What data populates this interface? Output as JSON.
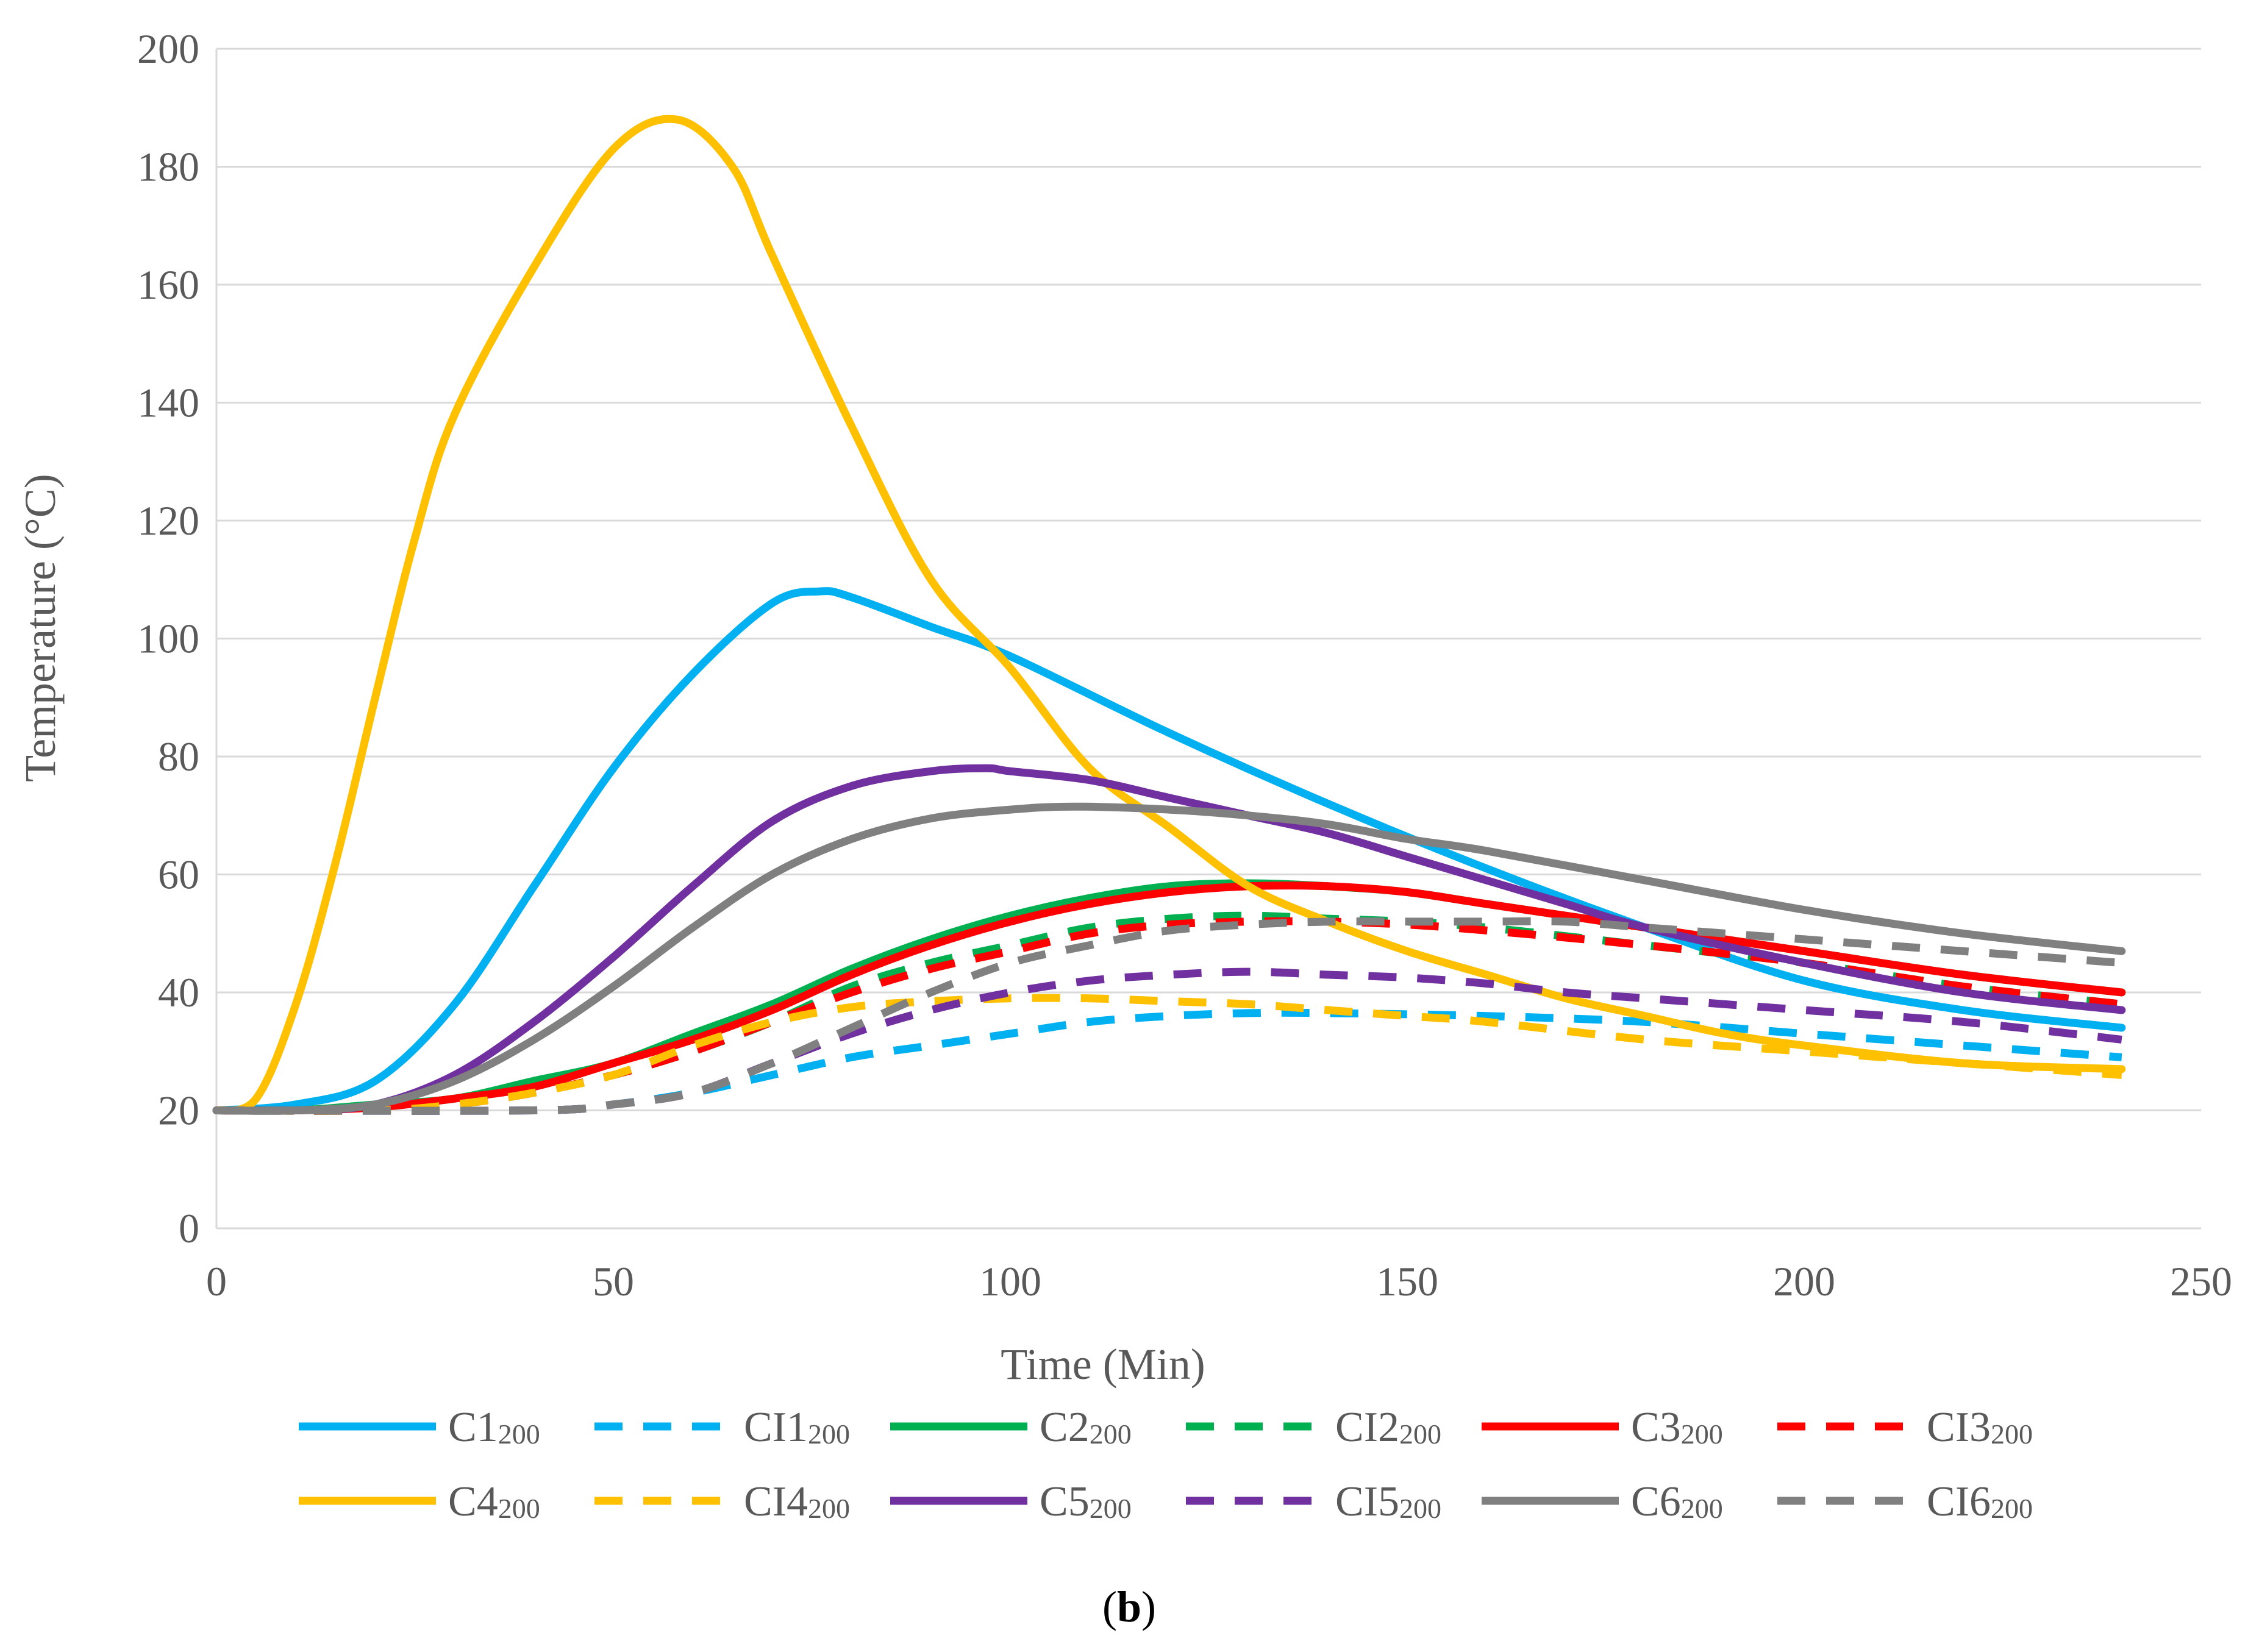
{
  "chart_data": {
    "type": "line",
    "title": "",
    "xlabel": "Time (Min)",
    "ylabel": "Temperature (°C)",
    "xlim": [
      0,
      250
    ],
    "ylim": [
      0,
      200
    ],
    "xticks": [
      0,
      50,
      100,
      150,
      200,
      250
    ],
    "yticks": [
      0,
      20,
      40,
      60,
      80,
      100,
      120,
      140,
      160,
      180,
      200
    ],
    "grid": "horizontal",
    "legend_position": "bottom",
    "series": [
      {
        "name": "C1",
        "subscript": "200",
        "color": "#00B0F0",
        "dash": "solid",
        "x": [
          0,
          10,
          20,
          30,
          40,
          50,
          60,
          70,
          76,
          80,
          90,
          100,
          120,
          140,
          160,
          180,
          200,
          220,
          240
        ],
        "y": [
          20,
          21,
          25,
          38,
          58,
          78,
          94,
          106,
          108,
          107,
          102,
          97,
          84,
          72,
          61,
          51,
          42,
          37,
          34
        ]
      },
      {
        "name": "CI1",
        "subscript": "200",
        "color": "#00B0F0",
        "dash": "dashed",
        "x": [
          0,
          40,
          50,
          60,
          70,
          80,
          90,
          100,
          110,
          120,
          130,
          140,
          160,
          180,
          200,
          220,
          240
        ],
        "y": [
          20,
          20,
          21,
          23,
          26,
          29,
          31,
          33,
          35,
          36,
          36.5,
          36.5,
          36,
          35,
          33,
          31,
          29
        ]
      },
      {
        "name": "C2",
        "subscript": "200",
        "color": "#00B050",
        "dash": "solid",
        "x": [
          0,
          10,
          20,
          30,
          40,
          50,
          60,
          70,
          80,
          90,
          100,
          110,
          120,
          130,
          140,
          150,
          160,
          180,
          200,
          220,
          240
        ],
        "y": [
          20,
          20,
          21,
          22,
          25,
          28,
          33,
          38,
          44,
          49,
          53,
          56,
          58,
          58.5,
          58,
          57,
          55,
          51,
          47,
          43,
          40
        ]
      },
      {
        "name": "CI2",
        "subscript": "200",
        "color": "#00B050",
        "dash": "dashed",
        "x": [
          0,
          20,
          30,
          40,
          50,
          60,
          70,
          80,
          90,
          100,
          110,
          120,
          130,
          140,
          150,
          160,
          180,
          200,
          220,
          240
        ],
        "y": [
          20,
          20,
          21,
          23,
          26,
          30,
          35,
          41,
          45,
          48,
          51,
          52.5,
          53,
          52.5,
          52,
          51,
          48,
          45,
          41,
          38
        ]
      },
      {
        "name": "C3",
        "subscript": "200",
        "color": "#FF0000",
        "dash": "solid",
        "x": [
          0,
          10,
          20,
          30,
          40,
          50,
          60,
          70,
          80,
          90,
          100,
          110,
          120,
          130,
          140,
          150,
          160,
          180,
          200,
          220,
          240
        ],
        "y": [
          20,
          20,
          20.5,
          22,
          24,
          28,
          32,
          37,
          43,
          48,
          52,
          55,
          57,
          58,
          58,
          57,
          55,
          51,
          47,
          43,
          40
        ]
      },
      {
        "name": "CI3",
        "subscript": "200",
        "color": "#FF0000",
        "dash": "dashed",
        "x": [
          0,
          20,
          30,
          40,
          50,
          60,
          70,
          80,
          90,
          100,
          110,
          120,
          130,
          140,
          150,
          160,
          180,
          200,
          220,
          240
        ],
        "y": [
          20,
          20,
          21,
          23,
          26,
          30,
          35,
          40,
          44,
          47,
          50,
          51.5,
          52,
          52,
          51.5,
          50.5,
          48,
          45,
          41,
          38
        ]
      },
      {
        "name": "C4",
        "subscript": "200",
        "color": "#FFC000",
        "dash": "solid",
        "x": [
          0,
          5,
          10,
          15,
          20,
          25,
          30,
          40,
          50,
          58,
          65,
          70,
          80,
          90,
          100,
          110,
          120,
          130,
          140,
          150,
          160,
          170,
          180,
          190,
          200,
          220,
          240
        ],
        "y": [
          20,
          22,
          38,
          62,
          90,
          117,
          138,
          163,
          183,
          188,
          180,
          165,
          136,
          110,
          95,
          78,
          68,
          58,
          52,
          47,
          43,
          39,
          36,
          33,
          31,
          28,
          27
        ]
      },
      {
        "name": "CI4",
        "subscript": "200",
        "color": "#FFC000",
        "dash": "dashed",
        "x": [
          0,
          20,
          30,
          40,
          50,
          60,
          70,
          80,
          90,
          100,
          110,
          120,
          130,
          140,
          150,
          160,
          180,
          200,
          220,
          240
        ],
        "y": [
          20,
          20,
          21,
          23,
          26,
          31,
          35,
          37.5,
          38.5,
          39,
          39,
          38.5,
          38,
          37,
          36,
          35,
          32,
          30,
          28,
          26
        ]
      },
      {
        "name": "C5",
        "subscript": "200",
        "color": "#7030A0",
        "dash": "solid",
        "x": [
          0,
          10,
          20,
          30,
          40,
          50,
          60,
          70,
          80,
          90,
          97,
          100,
          110,
          120,
          130,
          140,
          150,
          160,
          170,
          180,
          200,
          220,
          240
        ],
        "y": [
          20,
          20,
          21,
          26,
          35,
          46,
          58,
          69,
          75,
          77.5,
          78,
          77.5,
          76,
          73,
          70,
          67,
          63,
          59,
          55,
          51,
          45,
          40,
          37
        ]
      },
      {
        "name": "CI5",
        "subscript": "200",
        "color": "#7030A0",
        "dash": "dashed",
        "x": [
          0,
          40,
          50,
          60,
          70,
          80,
          90,
          100,
          110,
          120,
          130,
          140,
          150,
          160,
          170,
          180,
          200,
          220,
          240
        ],
        "y": [
          20,
          20,
          21,
          23,
          28,
          33,
          37,
          40,
          42,
          43,
          43.5,
          43,
          42.5,
          41.5,
          40,
          39,
          37,
          35,
          32
        ]
      },
      {
        "name": "C6",
        "subscript": "200",
        "color": "#808080",
        "dash": "solid",
        "x": [
          0,
          10,
          20,
          30,
          40,
          50,
          60,
          70,
          80,
          90,
          100,
          108,
          120,
          130,
          140,
          150,
          160,
          180,
          200,
          220,
          240
        ],
        "y": [
          20,
          20,
          21,
          25,
          32,
          41,
          51,
          60,
          66,
          69.5,
          71,
          71.5,
          71,
          70,
          68.5,
          66,
          64,
          59,
          54,
          50,
          47
        ]
      },
      {
        "name": "CI6",
        "subscript": "200",
        "color": "#808080",
        "dash": "dashed",
        "x": [
          0,
          40,
          50,
          60,
          70,
          80,
          90,
          100,
          110,
          120,
          130,
          140,
          150,
          160,
          170,
          180,
          200,
          220,
          240
        ],
        "y": [
          20,
          20,
          21,
          23,
          28,
          34,
          40,
          45,
          48,
          50.5,
          51.5,
          52,
          52,
          52,
          52,
          51,
          49,
          47,
          45
        ]
      }
    ]
  },
  "caption": {
    "open": "(",
    "letter": "b",
    "close": ")"
  }
}
